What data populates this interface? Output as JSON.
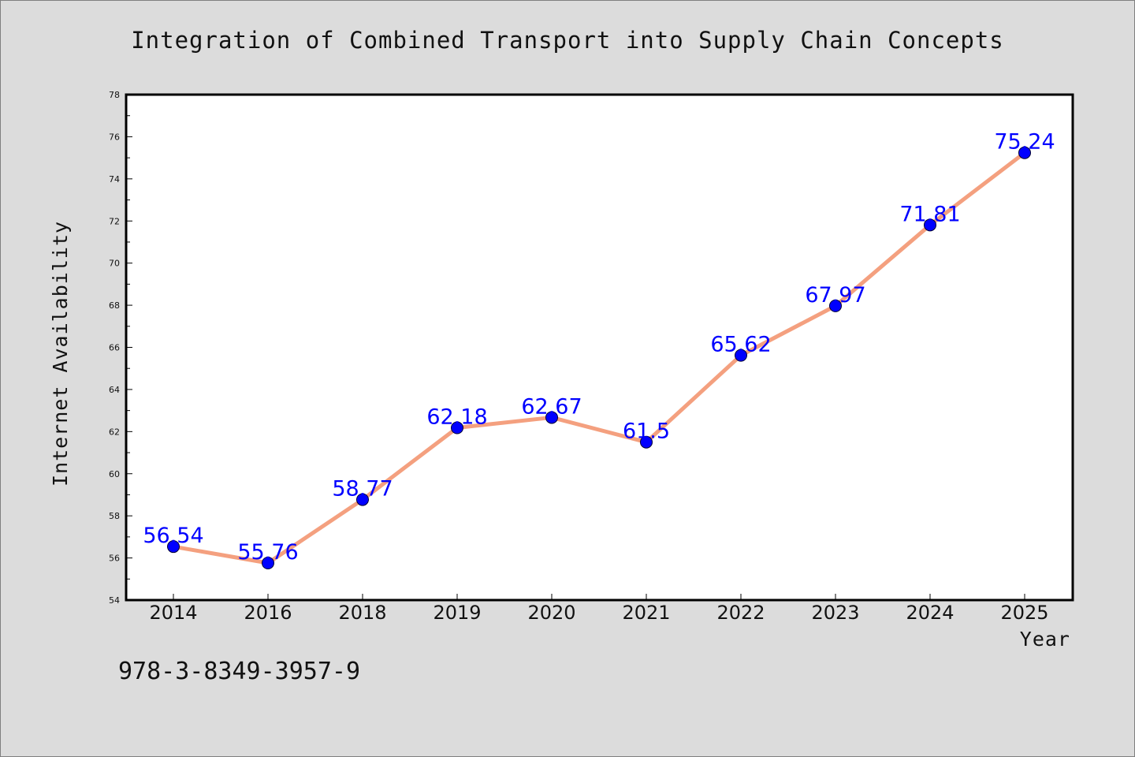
{
  "title": "Integration of Combined Transport into Supply Chain Concepts",
  "footer_text": "978-3-8349-3957-9",
  "chart_data": {
    "type": "line",
    "title": "Integration of Combined Transport into Supply Chain Concepts",
    "xlabel": "Year",
    "ylabel": "Internet Availability",
    "categories": [
      "2014",
      "2016",
      "2018",
      "2019",
      "2020",
      "2021",
      "2022",
      "2023",
      "2024",
      "2025"
    ],
    "values": [
      56.54,
      55.76,
      58.77,
      62.18,
      62.67,
      61.5,
      65.62,
      67.97,
      71.81,
      75.24
    ],
    "data_labels": [
      "56.54",
      "55.76",
      "58.77",
      "62.18",
      "62.67",
      "61.5",
      "65.62",
      "67.97",
      "71.81",
      "75.24"
    ],
    "ylim": [
      54,
      78
    ],
    "yticks": [
      54,
      56,
      58,
      60,
      62,
      64,
      66,
      68,
      70,
      72,
      74,
      76,
      78
    ],
    "grid": false,
    "legend": "none",
    "colors": {
      "line": "#f4a07f",
      "marker": "#0000ff",
      "label": "#0000ff",
      "plot_bg": "#ffffff",
      "page_bg": "#dcdcdc"
    }
  }
}
